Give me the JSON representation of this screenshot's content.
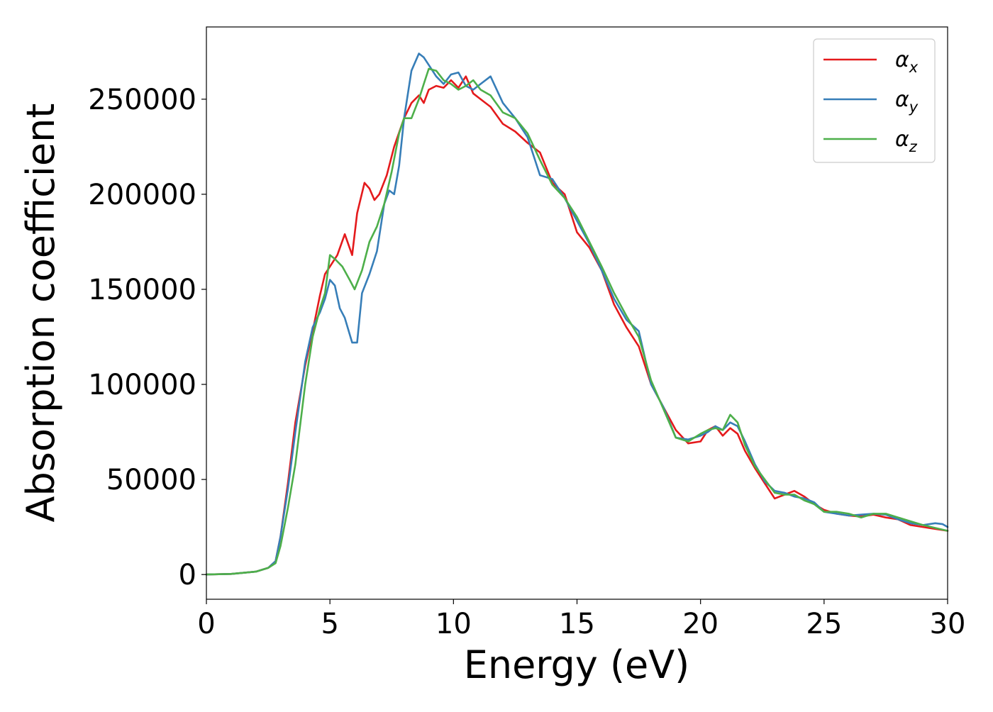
{
  "chart_data": {
    "type": "line",
    "title": "",
    "xlabel": "Energy (eV)",
    "ylabel": "Absorption coefficient",
    "xlim": [
      0,
      30
    ],
    "ylim": [
      -13000,
      288000
    ],
    "xticks": [
      0,
      5,
      10,
      15,
      20,
      25,
      30
    ],
    "xtick_labels": [
      "0",
      "5",
      "10",
      "15",
      "20",
      "25",
      "30"
    ],
    "yticks": [
      0,
      50000,
      100000,
      150000,
      200000,
      250000
    ],
    "ytick_labels": [
      "0",
      "50000",
      "100000",
      "150000",
      "200000",
      "250000"
    ],
    "grid": false,
    "legend_position": "upper right",
    "series": [
      {
        "name": "α_x",
        "legend_symbol": "α",
        "legend_subscript": "x",
        "color": "#e41a1c",
        "x": [
          0,
          1,
          2,
          2.5,
          2.8,
          3.0,
          3.3,
          3.6,
          4.0,
          4.3,
          4.6,
          4.8,
          5.0,
          5.3,
          5.6,
          5.9,
          6.1,
          6.4,
          6.6,
          6.8,
          7.0,
          7.3,
          7.6,
          8.0,
          8.3,
          8.6,
          8.8,
          9.0,
          9.3,
          9.6,
          9.9,
          10.2,
          10.5,
          10.8,
          11.1,
          11.5,
          12.0,
          12.5,
          13.0,
          13.5,
          14.0,
          14.5,
          15.0,
          15.5,
          16.0,
          16.5,
          17.0,
          17.5,
          18.0,
          18.5,
          19.0,
          19.5,
          20.0,
          20.3,
          20.6,
          20.9,
          21.2,
          21.5,
          21.8,
          22.2,
          22.6,
          23.0,
          23.4,
          23.8,
          24.2,
          24.6,
          25.0,
          25.5,
          26.0,
          26.5,
          27.0,
          27.5,
          28.0,
          28.5,
          29.0,
          29.5,
          30.0
        ],
        "values": [
          0,
          300,
          1500,
          3500,
          7000,
          20000,
          48000,
          80000,
          110000,
          128000,
          147000,
          158000,
          162000,
          168000,
          179000,
          168000,
          190000,
          206000,
          203000,
          197000,
          200000,
          210000,
          225000,
          240000,
          248000,
          252000,
          248000,
          255000,
          257000,
          256000,
          260000,
          256000,
          262000,
          253000,
          250000,
          246000,
          237000,
          233000,
          227000,
          222000,
          206000,
          200000,
          180000,
          172000,
          160000,
          142000,
          130000,
          120000,
          100000,
          88000,
          76000,
          69000,
          70000,
          76000,
          78000,
          73000,
          77000,
          74000,
          65000,
          56000,
          48000,
          40000,
          42000,
          44000,
          41000,
          37000,
          34000,
          32000,
          31000,
          30500,
          31500,
          30000,
          29000,
          26000,
          25000,
          24000,
          23000
        ]
      },
      {
        "name": "α_y",
        "legend_symbol": "α",
        "legend_subscript": "y",
        "color": "#377eb8",
        "x": [
          0,
          1,
          2,
          2.5,
          2.8,
          3.0,
          3.3,
          3.6,
          4.0,
          4.3,
          4.6,
          4.8,
          5.0,
          5.2,
          5.4,
          5.6,
          5.9,
          6.1,
          6.3,
          6.6,
          6.9,
          7.2,
          7.4,
          7.6,
          7.8,
          8.0,
          8.3,
          8.6,
          8.8,
          9.0,
          9.3,
          9.6,
          9.9,
          10.2,
          10.5,
          10.8,
          11.1,
          11.5,
          12.0,
          12.5,
          13.0,
          13.5,
          14.0,
          14.5,
          15.0,
          15.5,
          16.0,
          16.5,
          17.0,
          17.5,
          18.0,
          18.5,
          19.0,
          19.5,
          20.0,
          20.3,
          20.6,
          20.9,
          21.2,
          21.5,
          21.8,
          22.2,
          22.6,
          23.0,
          23.4,
          23.8,
          24.2,
          24.6,
          25.0,
          25.5,
          26.0,
          26.5,
          27.0,
          27.5,
          28.0,
          28.5,
          29.0,
          29.5,
          29.8,
          30.0
        ],
        "values": [
          0,
          300,
          1500,
          3500,
          7000,
          20000,
          45000,
          75000,
          112000,
          130000,
          138000,
          145000,
          155000,
          152000,
          140000,
          135000,
          122000,
          122000,
          148000,
          158000,
          170000,
          195000,
          202000,
          200000,
          215000,
          240000,
          265000,
          274000,
          272000,
          268000,
          262000,
          258000,
          263000,
          264000,
          257000,
          255000,
          258000,
          262000,
          248000,
          240000,
          230000,
          210000,
          208000,
          198000,
          186000,
          174000,
          160000,
          145000,
          134000,
          128000,
          100000,
          88000,
          72000,
          71000,
          73000,
          75000,
          78000,
          76000,
          80000,
          78000,
          70000,
          58000,
          49000,
          44000,
          43000,
          41000,
          40000,
          38000,
          33000,
          32000,
          31000,
          31500,
          32000,
          31500,
          29000,
          27000,
          26000,
          27000,
          26500,
          25000
        ]
      },
      {
        "name": "α_z",
        "legend_symbol": "α",
        "legend_subscript": "z",
        "color": "#4daf4a",
        "x": [
          0,
          1,
          2,
          2.5,
          2.8,
          3.0,
          3.3,
          3.6,
          4.0,
          4.3,
          4.6,
          4.8,
          5.0,
          5.2,
          5.5,
          5.8,
          6.0,
          6.3,
          6.6,
          6.9,
          7.2,
          7.5,
          7.8,
          8.0,
          8.3,
          8.6,
          8.8,
          9.0,
          9.3,
          9.6,
          9.9,
          10.2,
          10.5,
          10.8,
          11.1,
          11.5,
          12.0,
          12.5,
          13.0,
          13.5,
          14.0,
          14.5,
          15.0,
          15.5,
          16.0,
          16.5,
          17.0,
          17.5,
          18.0,
          18.5,
          19.0,
          19.5,
          20.0,
          20.3,
          20.6,
          20.9,
          21.2,
          21.5,
          21.8,
          22.2,
          22.6,
          23.0,
          23.4,
          23.8,
          24.2,
          24.6,
          25.0,
          25.5,
          26.0,
          26.5,
          27.0,
          27.5,
          28.0,
          28.5,
          29.0,
          29.5,
          30.0
        ],
        "values": [
          0,
          300,
          1500,
          3500,
          6000,
          15000,
          35000,
          58000,
          100000,
          125000,
          140000,
          148000,
          168000,
          166000,
          162000,
          155000,
          150000,
          160000,
          175000,
          183000,
          195000,
          212000,
          232000,
          240000,
          240000,
          250000,
          258000,
          266000,
          265000,
          260000,
          258000,
          255000,
          257000,
          260000,
          255000,
          252000,
          243000,
          240000,
          232000,
          218000,
          205000,
          198000,
          188000,
          175000,
          162000,
          148000,
          136000,
          125000,
          102000,
          87000,
          72000,
          70000,
          74000,
          76000,
          77000,
          76000,
          84000,
          80000,
          68000,
          57000,
          50000,
          43000,
          42000,
          42000,
          39000,
          37000,
          33000,
          33000,
          32000,
          30000,
          32000,
          32000,
          30000,
          28000,
          26000,
          24500,
          23000
        ]
      }
    ]
  }
}
